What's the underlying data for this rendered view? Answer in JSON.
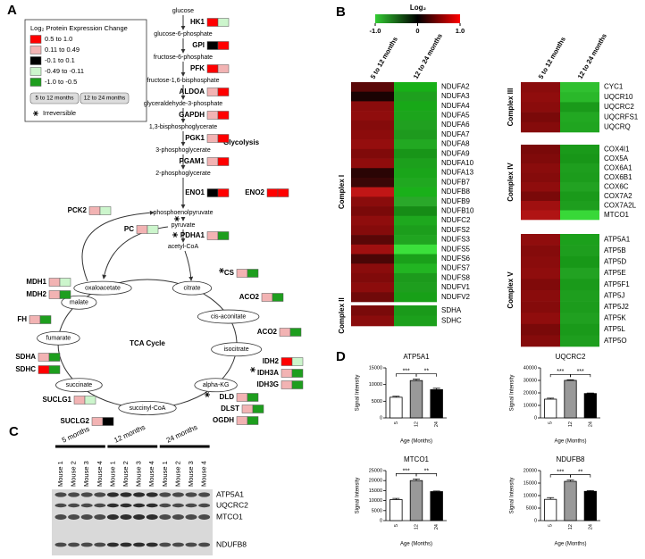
{
  "panel_labels": [
    "A",
    "B",
    "C",
    "D"
  ],
  "panel_a": {
    "legend": {
      "title": "Log₂ Protein Expression Change",
      "items": [
        {
          "label": "0.5 to 1.0",
          "color": "#ff0000"
        },
        {
          "label": "0.11 to 0.49",
          "color": "#f2b3b3"
        },
        {
          "label": "-0.1 to 0.1",
          "color": "#000000"
        },
        {
          "label": "-0.49 to -0.11",
          "color": "#ccf5cc"
        },
        {
          "label": "-1.0 to -0.5",
          "color": "#1e9e1e"
        }
      ],
      "columns": [
        "5 to 12 months",
        "12 to 24 months"
      ],
      "irreversible": "Irreversible"
    },
    "glycolysis_label": "Glycolysis",
    "tca_label": "TCA Cycle",
    "metabolites": [
      "glucose",
      "glucose-6-phosphate",
      "fructose-6-phosphate",
      "fructose-1,6-bisphosphate",
      "glyceraldehyde-3-phosphate",
      "1,3-bisphosphoglycerate",
      "3-phosphoglycerate",
      "2-phosphoglycerate",
      "phosphoenolpyruvate",
      "pyruvate",
      "acetyl-CoA"
    ],
    "tca_nodes": [
      "oxaloacetate",
      "citrate",
      "cis-aconitate",
      "isocitrate",
      "alpha-KG",
      "succinyl-CoA",
      "succinate",
      "fumarate",
      "malate"
    ],
    "enzymes": [
      {
        "name": "HK1",
        "colors": [
          "#ff0000",
          "#ccf5cc"
        ]
      },
      {
        "name": "GPI",
        "colors": [
          "#000000",
          "#ff0000"
        ]
      },
      {
        "name": "PFK",
        "colors": [
          "#ff0000",
          "#f2b3b3"
        ]
      },
      {
        "name": "ALDOA",
        "colors": [
          "#f2b3b3",
          "#ff0000"
        ]
      },
      {
        "name": "GAPDH",
        "colors": [
          "#f2b3b3",
          "#ff0000"
        ]
      },
      {
        "name": "PGK1",
        "colors": [
          "#f2b3b3",
          "#ff0000"
        ]
      },
      {
        "name": "PGAM1",
        "colors": [
          "#f2b3b3",
          "#ff0000"
        ]
      },
      {
        "name": "ENO1",
        "colors": [
          "#000000",
          "#ff0000"
        ]
      },
      {
        "name": "ENO2",
        "colors": [
          "#ff0000",
          "#ff0000"
        ]
      },
      {
        "name": "PDHA1",
        "colors": [
          "#f2b3b3",
          "#1e9e1e"
        ]
      },
      {
        "name": "PC",
        "colors": [
          "#f2b3b3",
          "#ccf5cc"
        ]
      },
      {
        "name": "PCK2",
        "colors": [
          "#f2b3b3",
          "#ccf5cc"
        ]
      },
      {
        "name": "CS",
        "colors": [
          "#f2b3b3",
          "#1e9e1e"
        ]
      },
      {
        "name": "ACO2",
        "colors": [
          "#f2b3b3",
          "#1e9e1e"
        ]
      },
      {
        "name": "ACO2",
        "colors": [
          "#f2b3b3",
          "#1e9e1e"
        ]
      },
      {
        "name": "IDH2",
        "colors": [
          "#ff0000",
          "#ccf5cc"
        ]
      },
      {
        "name": "IDH3A",
        "colors": [
          "#f2b3b3",
          "#1e9e1e"
        ]
      },
      {
        "name": "IDH3G",
        "colors": [
          "#f2b3b3",
          "#1e9e1e"
        ]
      },
      {
        "name": "DLD",
        "colors": [
          "#f2b3b3",
          "#1e9e1e"
        ]
      },
      {
        "name": "DLST",
        "colors": [
          "#f2b3b3",
          "#1e9e1e"
        ]
      },
      {
        "name": "OGDH",
        "colors": [
          "#f2b3b3",
          "#1e9e1e"
        ]
      },
      {
        "name": "SUCLG1",
        "colors": [
          "#f2b3b3",
          "#ccf5cc"
        ]
      },
      {
        "name": "SUCLG2",
        "colors": [
          "#f2b3b3",
          "#000000"
        ]
      },
      {
        "name": "SDHC",
        "colors": [
          "#ff0000",
          "#1e9e1e"
        ]
      },
      {
        "name": "SDHA",
        "colors": [
          "#f2b3b3",
          "#1e9e1e"
        ]
      },
      {
        "name": "FH",
        "colors": [
          "#f2b3b3",
          "#1e9e1e"
        ]
      },
      {
        "name": "MDH2",
        "colors": [
          "#f2b3b3",
          "#1e9e1e"
        ]
      },
      {
        "name": "MDH1",
        "colors": [
          "#f2b3b3",
          "#ccf5cc"
        ]
      }
    ]
  },
  "panel_b": {
    "colorbar": {
      "title": "Log₂",
      "lim": [
        -1,
        1
      ],
      "colors": [
        "#33cc33",
        "#000000",
        "#ff0000"
      ],
      "ticks": [
        {
          "value": -1,
          "label": "-1.0"
        },
        0,
        {
          "value": 1,
          "label": "1.0"
        }
      ]
    },
    "columns": [
      "5 to 12 months",
      "12 to 24 months"
    ],
    "left": [
      {
        "name": "Complex I",
        "rows": [
          {
            "gene": "NDUFA2",
            "colors": [
              "#5a0808",
              "#17b017"
            ]
          },
          {
            "gene": "NDUFA3",
            "colors": [
              "#1a0303",
              "#1ea01e"
            ]
          },
          {
            "gene": "NDUFA4",
            "colors": [
              "#8a0c0c",
              "#18a818"
            ]
          },
          {
            "gene": "NDUFA5",
            "colors": [
              "#900d0d",
              "#1ca51c"
            ]
          },
          {
            "gene": "NDUFA6",
            "colors": [
              "#850b0b",
              "#20a020"
            ]
          },
          {
            "gene": "NDUFA7",
            "colors": [
              "#8c0c0c",
              "#1e9a1e"
            ]
          },
          {
            "gene": "NDUFA8",
            "colors": [
              "#950e0e",
              "#22a822"
            ]
          },
          {
            "gene": "NDUFA9",
            "colors": [
              "#800a0a",
              "#189518"
            ]
          },
          {
            "gene": "NDUFA10",
            "colors": [
              "#8f0c0c",
              "#1ca01c"
            ]
          },
          {
            "gene": "NDUFA13",
            "colors": [
              "#2a0505",
              "#1aa51a"
            ]
          },
          {
            "gene": "NDUFB7",
            "colors": [
              "#3a0707",
              "#20a820"
            ]
          },
          {
            "gene": "NDUFB8",
            "colors": [
              "#c01616",
              "#1ab01a"
            ],
            "label_color": "#ff0000"
          },
          {
            "gene": "NDUFB9",
            "colors": [
              "#8a0c0c",
              "#2aa82a"
            ]
          },
          {
            "gene": "NDUFB10",
            "colors": [
              "#7a0909",
              "#168c16"
            ]
          },
          {
            "gene": "NDUFC2",
            "colors": [
              "#8f0d0d",
              "#1ea81e"
            ]
          },
          {
            "gene": "NDUFS2",
            "colors": [
              "#850b0b",
              "#1c9e1c"
            ]
          },
          {
            "gene": "NDUFS3",
            "colors": [
              "#5a0707",
              "#20a520"
            ]
          },
          {
            "gene": "NDUFS5",
            "colors": [
              "#a01010",
              "#3be03b"
            ]
          },
          {
            "gene": "NDUFS6",
            "colors": [
              "#4a0606",
              "#1aa01a"
            ]
          },
          {
            "gene": "NDUFS7",
            "colors": [
              "#8a0c0c",
              "#22b522"
            ]
          },
          {
            "gene": "NDUFS8",
            "colors": [
              "#800a0a",
              "#1c9a1c"
            ]
          },
          {
            "gene": "NDUFV1",
            "colors": [
              "#8c0c0c",
              "#1e9e1e"
            ]
          },
          {
            "gene": "NDUFV2",
            "colors": [
              "#700909",
              "#18a018"
            ]
          }
        ]
      },
      {
        "name": "Complex II",
        "rows": [
          {
            "gene": "SDHA",
            "colors": [
              "#7a0a0a",
              "#1a9a1a"
            ]
          },
          {
            "gene": "SDHC",
            "colors": [
              "#8a0c0c",
              "#1ca01c"
            ]
          }
        ]
      }
    ],
    "right": [
      {
        "name": "Complex III",
        "rows": [
          {
            "gene": "CYC1",
            "colors": [
              "#8a0c0c",
              "#30c030"
            ]
          },
          {
            "gene": "UQCR10",
            "colors": [
              "#900d0d",
              "#2ab82a"
            ]
          },
          {
            "gene": "UQCRC2",
            "colors": [
              "#8a0c0c",
              "#1a9a1a"
            ],
            "label_color": "#ff0000"
          },
          {
            "gene": "UQCRFS1",
            "colors": [
              "#7a0909",
              "#22a822"
            ]
          },
          {
            "gene": "UQCRQ",
            "colors": [
              "#850b0b",
              "#20a520"
            ]
          }
        ]
      },
      {
        "name": "Complex IV",
        "rows": [
          {
            "gene": "COX4I1",
            "colors": [
              "#7a0909",
              "#1a9a1a"
            ]
          },
          {
            "gene": "COX5A",
            "colors": [
              "#800a0a",
              "#189618"
            ]
          },
          {
            "gene": "COX6A1",
            "colors": [
              "#8a0c0c",
              "#1e9e1e"
            ]
          },
          {
            "gene": "COX6B1",
            "colors": [
              "#850b0b",
              "#1c9c1c"
            ]
          },
          {
            "gene": "COX6C",
            "colors": [
              "#8f0d0d",
              "#22a222"
            ]
          },
          {
            "gene": "COX7A2",
            "colors": [
              "#7a0909",
              "#1a9a1a"
            ]
          },
          {
            "gene": "COX7A2L",
            "colors": [
              "#a01010",
              "#1e9e1e"
            ]
          },
          {
            "gene": "MTCO1",
            "colors": [
              "#b01414",
              "#38d838"
            ],
            "label_color": "#ff0000"
          }
        ]
      },
      {
        "name": "Complex V",
        "rows": [
          {
            "gene": "ATP5A1",
            "colors": [
              "#900d0d",
              "#1ca01c"
            ],
            "label_color": "#ff0000"
          },
          {
            "gene": "ATP5B",
            "colors": [
              "#850b0b",
              "#1e9e1e"
            ]
          },
          {
            "gene": "ATP5D",
            "colors": [
              "#8a0c0c",
              "#189818"
            ]
          },
          {
            "gene": "ATP5E",
            "colors": [
              "#8f0d0d",
              "#22a222"
            ]
          },
          {
            "gene": "ATP5F1",
            "colors": [
              "#800a0a",
              "#1a9a1a"
            ]
          },
          {
            "gene": "ATP5J",
            "colors": [
              "#8a0c0c",
              "#1e9e1e"
            ]
          },
          {
            "gene": "ATP5J2",
            "colors": [
              "#850b0b",
              "#1c9c1c"
            ]
          },
          {
            "gene": "ATP5K",
            "colors": [
              "#900d0d",
              "#20a020"
            ]
          },
          {
            "gene": "ATP5L",
            "colors": [
              "#7a0909",
              "#1a9a1a"
            ]
          },
          {
            "gene": "ATP5O",
            "colors": [
              "#850b0b",
              "#1e9e1e"
            ]
          }
        ]
      }
    ]
  },
  "panel_c": {
    "groups": [
      {
        "label": "5 months",
        "mice": [
          "Mouse 1",
          "Mouse 2",
          "Mouse 3",
          "Mouse 4"
        ]
      },
      {
        "label": "12 months",
        "mice": [
          "Mouse 1",
          "Mouse 2",
          "Mouse 3",
          "Mouse 4"
        ]
      },
      {
        "label": "24 months",
        "mice": [
          "Mouse 1",
          "Mouse 2",
          "Mouse 3",
          "Mouse 4"
        ]
      }
    ],
    "bands": [
      "ATP5A1",
      "UQCRC2",
      "MTCO1",
      "NDUFB8"
    ]
  },
  "chart_data": [
    {
      "type": "bar",
      "title": "ATP5A1",
      "xlabel": "Age (Months)",
      "ylabel": "Signal Intensity",
      "categories": [
        "5",
        "12",
        "24"
      ],
      "values": [
        6200,
        11200,
        8500
      ],
      "errors": [
        300,
        400,
        400
      ],
      "colors": [
        "#ffffff",
        "#999999",
        "#000000"
      ],
      "ylim": [
        0,
        15000
      ],
      "yticks": [
        0,
        5000,
        10000,
        15000
      ],
      "brackets": [
        {
          "label": "***",
          "between": [
            "5",
            "12"
          ]
        },
        {
          "label": "**",
          "between": [
            "12",
            "24"
          ]
        }
      ]
    },
    {
      "type": "bar",
      "title": "UQCRC2",
      "xlabel": "Age (Months)",
      "ylabel": "Signal Intensity",
      "categories": [
        "5",
        "12",
        "24"
      ],
      "values": [
        15000,
        30000,
        19500
      ],
      "errors": [
        800,
        500,
        400
      ],
      "colors": [
        "#ffffff",
        "#999999",
        "#000000"
      ],
      "ylim": [
        0,
        40000
      ],
      "yticks": [
        0,
        10000,
        20000,
        30000,
        40000
      ],
      "brackets": [
        {
          "label": "***",
          "between": [
            "5",
            "12"
          ]
        },
        {
          "label": "***",
          "between": [
            "12",
            "24"
          ]
        }
      ]
    },
    {
      "type": "bar",
      "title": "MTCO1",
      "xlabel": "Age (Months)",
      "ylabel": "Signal Intensity",
      "categories": [
        "5",
        "12",
        "24"
      ],
      "values": [
        10500,
        20000,
        14500
      ],
      "errors": [
        600,
        800,
        300
      ],
      "colors": [
        "#ffffff",
        "#999999",
        "#000000"
      ],
      "ylim": [
        0,
        25000
      ],
      "yticks": [
        0,
        5000,
        10000,
        15000,
        20000,
        25000
      ],
      "brackets": [
        {
          "label": "***",
          "between": [
            "5",
            "12"
          ]
        },
        {
          "label": "**",
          "between": [
            "12",
            "24"
          ]
        }
      ]
    },
    {
      "type": "bar",
      "title": "NDUFB8",
      "xlabel": "Age (Months)",
      "ylabel": "Signal Intensity",
      "categories": [
        "5",
        "12",
        "24"
      ],
      "values": [
        8500,
        15700,
        11700
      ],
      "errors": [
        700,
        500,
        300
      ],
      "colors": [
        "#ffffff",
        "#999999",
        "#000000"
      ],
      "ylim": [
        0,
        20000
      ],
      "yticks": [
        0,
        5000,
        10000,
        15000,
        20000
      ],
      "brackets": [
        {
          "label": "***",
          "between": [
            "5",
            "12"
          ]
        },
        {
          "label": "**",
          "between": [
            "12",
            "24"
          ]
        }
      ]
    }
  ]
}
